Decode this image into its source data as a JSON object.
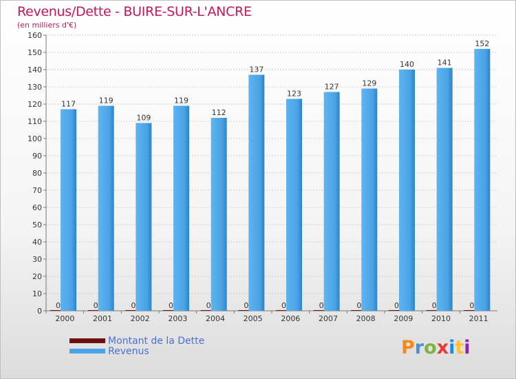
{
  "title": "Revenus/Dette - BUIRE-SUR-L'ANCRE",
  "subtitle": "(en milliers d'€)",
  "logo": {
    "letters": [
      "P",
      "r",
      "o",
      "x",
      "i",
      "t",
      "i"
    ],
    "colors": [
      "#f28a1c",
      "#4a90d9",
      "#7cb342",
      "#e53935",
      "#1e88e5",
      "#fbc02d",
      "#8e24aa"
    ]
  },
  "chart_data": {
    "type": "bar",
    "title": "Revenus/Dette - BUIRE-SUR-L'ANCRE",
    "ylabel": "(en milliers d'€)",
    "categories": [
      "2000",
      "2001",
      "2002",
      "2003",
      "2004",
      "2005",
      "2006",
      "2007",
      "2008",
      "2009",
      "2010",
      "2011"
    ],
    "series": [
      {
        "name": "Montant de la Dette",
        "color": "#6b0f0f",
        "values": [
          0,
          0,
          0,
          0,
          0,
          0,
          0,
          0,
          0,
          0,
          0,
          0
        ]
      },
      {
        "name": "Revenus",
        "color": "#4aa3e6",
        "values": [
          117,
          119,
          109,
          119,
          112,
          137,
          123,
          127,
          129,
          140,
          141,
          152
        ]
      }
    ],
    "ylim": [
      0,
      160
    ],
    "yticks": [
      "0",
      "10",
      "20",
      "30",
      "40",
      "50",
      "60",
      "70",
      "80",
      "90",
      "100",
      "110",
      "120",
      "130",
      "140",
      "150",
      "160"
    ],
    "grid": true,
    "legend": "bottom-left"
  }
}
